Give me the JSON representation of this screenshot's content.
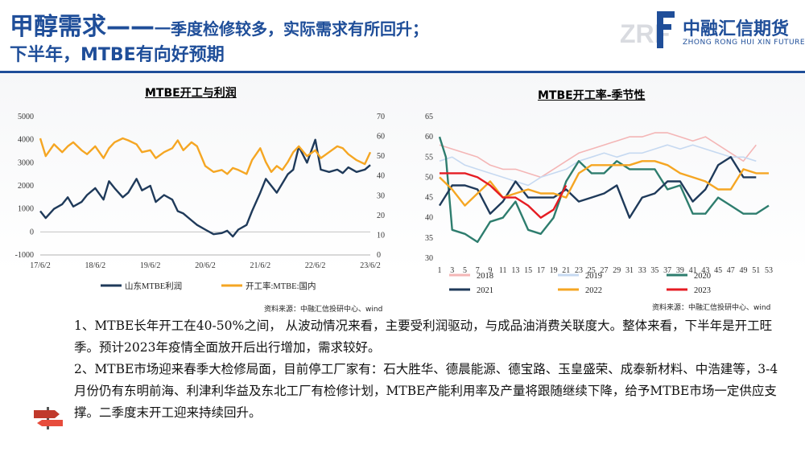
{
  "header": {
    "title_main": "甲醇需求——",
    "title_sub": "一季度检修较多，实际需求有所回升；",
    "title_line2": "下半年，MTBE有向好预期"
  },
  "logo": {
    "cn": "中融汇信期货",
    "en": "ZHONG RONG HUI XIN FUTURES",
    "ghost": "ZRF"
  },
  "colors": {
    "brand": "#1f4e99",
    "series_profit": "#1f3a5a",
    "series_rate": "#f5a623"
  },
  "left_chart_source": "资料来源：中融汇信投研中心、wind",
  "right_chart_source": "资料来源：中融汇信投研中心、wind",
  "paragraphs": {
    "p1": "1、MTBE长年开工在40-50%之间， 从波动情况来看，主要受利润驱动，与成品油消费关联度大。整体来看，下半年是开工旺季。预计2023年疫情全面放开后出行增加，需求较好。",
    "p2": "2、MTBE市场迎来春季大检修局面，目前停工厂家有：石大胜华、德晨能源、德宝路、玉皇盛荣、成泰新材料、中浩建等，3-4月份仍有东明前海、利津利华益及东北工厂有检修计划，MTBE产能利用率及产量将跟随继续下降，给予MTBE市场一定供应支撑。二季度末开工迎来持续回升。"
  },
  "chart_data": [
    {
      "type": "line",
      "title": "MTBE开工与利润",
      "x_tick_labels": [
        "17/6/2",
        "18/6/2",
        "19/6/2",
        "20/6/2",
        "21/6/2",
        "22/6/2",
        "23/6/2"
      ],
      "y_left": {
        "ticks": [
          "-1000",
          "0",
          "1000",
          "2000",
          "3000",
          "4000",
          "5000"
        ],
        "lim": [
          -1000,
          5000
        ]
      },
      "y_right": {
        "ticks": [
          "0",
          "10",
          "20",
          "30",
          "40",
          "50",
          "60",
          "70"
        ],
        "lim": [
          0,
          70
        ]
      },
      "series": [
        {
          "name": "山东MTBE利润",
          "axis": "left",
          "color": "#1f3a5a",
          "x": [
            0,
            0.1,
            0.25,
            0.4,
            0.5,
            0.6,
            0.75,
            0.85,
            1.0,
            1.15,
            1.25,
            1.35,
            1.5,
            1.6,
            1.75,
            1.85,
            2.0,
            2.1,
            2.25,
            2.4,
            2.5,
            2.6,
            2.75,
            2.85,
            3.0,
            3.15,
            3.3,
            3.4,
            3.5,
            3.6,
            3.75,
            3.85,
            4.0,
            4.1,
            4.2,
            4.3,
            4.4,
            4.5,
            4.6,
            4.7,
            4.85,
            5.0,
            5.1,
            5.25,
            5.4,
            5.5,
            5.6,
            5.75,
            5.9,
            6.0
          ],
          "y": [
            900,
            600,
            1000,
            1200,
            1500,
            1100,
            1300,
            1600,
            1900,
            1400,
            2200,
            1900,
            1500,
            1700,
            2300,
            1800,
            2000,
            1300,
            1600,
            1400,
            900,
            800,
            500,
            300,
            100,
            -100,
            -50,
            50,
            -200,
            100,
            300,
            900,
            1700,
            2300,
            2000,
            1700,
            2100,
            2500,
            2700,
            3700,
            3000,
            4000,
            2700,
            2600,
            2700,
            2550,
            2800,
            2600,
            2700,
            2900
          ]
        },
        {
          "name": "开工率:MTBE:国内",
          "axis": "right",
          "color": "#f5a623",
          "x": [
            0,
            0.1,
            0.25,
            0.4,
            0.5,
            0.6,
            0.75,
            0.85,
            1.0,
            1.15,
            1.25,
            1.35,
            1.5,
            1.6,
            1.75,
            1.85,
            2.0,
            2.1,
            2.25,
            2.4,
            2.5,
            2.6,
            2.75,
            2.85,
            3.0,
            3.15,
            3.3,
            3.4,
            3.5,
            3.6,
            3.75,
            3.85,
            4.0,
            4.1,
            4.2,
            4.3,
            4.4,
            4.5,
            4.6,
            4.7,
            4.85,
            5.0,
            5.1,
            5.25,
            5.4,
            5.5,
            5.6,
            5.75,
            5.9,
            6.0
          ],
          "y": [
            59,
            50,
            56,
            52,
            55,
            57,
            53,
            51,
            55,
            49,
            54,
            57,
            59,
            58,
            56,
            52,
            53,
            49,
            52,
            54,
            58,
            53,
            57,
            55,
            45,
            42,
            43,
            41,
            44,
            43,
            41,
            48,
            54,
            47,
            42,
            45,
            43,
            47,
            52,
            55,
            50,
            53,
            49,
            52,
            55,
            54,
            51,
            48,
            46,
            52
          ]
        }
      ]
    },
    {
      "type": "line",
      "title": "MTBE开工率-季节性",
      "x_tick_labels": [
        "1",
        "3",
        "5",
        "7",
        "9",
        "11",
        "13",
        "15",
        "17",
        "19",
        "21",
        "23",
        "25",
        "27",
        "29",
        "31",
        "33",
        "35",
        "37",
        "39",
        "41",
        "43",
        "45",
        "47",
        "49",
        "51",
        "53"
      ],
      "y_ticks": [
        "30",
        "35",
        "40",
        "45",
        "50",
        "55",
        "60",
        "65"
      ],
      "ylim": [
        30,
        65
      ],
      "series": [
        {
          "name": "2018",
          "color": "#f4b6b6",
          "x": [
            1,
            3,
            5,
            7,
            9,
            11,
            13,
            15,
            17,
            19,
            21,
            23,
            25,
            27,
            29,
            31,
            33,
            35,
            37,
            39,
            41,
            43,
            45,
            47,
            49,
            51
          ],
          "y": [
            58,
            57,
            56,
            55,
            53,
            52,
            52,
            51,
            50,
            52,
            54,
            56,
            57,
            58,
            59,
            60,
            60,
            61,
            61,
            60,
            59,
            60,
            58,
            56,
            54,
            58
          ]
        },
        {
          "name": "2019",
          "color": "#c6d9f1",
          "x": [
            1,
            3,
            5,
            7,
            9,
            11,
            13,
            15,
            17,
            19,
            21,
            23,
            25,
            27,
            29,
            31,
            33,
            35,
            37,
            39,
            41,
            43,
            45,
            47,
            49,
            51
          ],
          "y": [
            54,
            55,
            53,
            52,
            51,
            50,
            49,
            48,
            50,
            51,
            52,
            54,
            55,
            56,
            55,
            56,
            56,
            57,
            58,
            57,
            58,
            57,
            56,
            55,
            55,
            54
          ]
        },
        {
          "name": "2020",
          "color": "#2e7d6e",
          "x": [
            1,
            2,
            3,
            5,
            7,
            9,
            11,
            13,
            15,
            17,
            19,
            21,
            23,
            25,
            27,
            29,
            31,
            33,
            35,
            37,
            39,
            41,
            43,
            45,
            47,
            49,
            51,
            53
          ],
          "y": [
            60,
            55,
            37,
            36,
            34,
            39,
            40,
            44,
            37,
            36,
            40,
            49,
            54,
            51,
            51,
            54,
            52,
            52,
            52,
            47,
            48,
            41,
            41,
            45,
            43,
            41,
            41,
            43
          ]
        },
        {
          "name": "2021",
          "color": "#1f3a5a",
          "x": [
            1,
            3,
            5,
            7,
            9,
            11,
            13,
            15,
            17,
            19,
            21,
            23,
            25,
            27,
            29,
            31,
            33,
            35,
            37,
            39,
            41,
            43,
            45,
            47,
            49,
            51
          ],
          "y": [
            43,
            48,
            48,
            47,
            41,
            44,
            49,
            45,
            45,
            45,
            47,
            44,
            45,
            46,
            48,
            40,
            45,
            46,
            49,
            49,
            44,
            47,
            53,
            55,
            50,
            50
          ]
        },
        {
          "name": "2022",
          "color": "#f5a623",
          "x": [
            1,
            3,
            5,
            7,
            9,
            11,
            13,
            15,
            17,
            19,
            21,
            23,
            25,
            27,
            29,
            31,
            33,
            35,
            37,
            39,
            41,
            43,
            45,
            47,
            49,
            51,
            53
          ],
          "y": [
            50,
            47,
            43,
            46,
            49,
            45,
            46,
            47,
            46,
            46,
            45,
            51,
            53,
            53,
            53,
            53,
            54,
            54,
            53,
            51,
            50,
            49,
            47,
            47,
            52,
            51,
            51
          ]
        },
        {
          "name": "2023",
          "color": "#e51c23",
          "x": [
            1,
            3,
            5,
            7,
            9,
            11,
            13,
            15,
            17,
            19,
            21
          ],
          "y": [
            51,
            51,
            51,
            50,
            48,
            45,
            45,
            43,
            40,
            42,
            48
          ]
        }
      ]
    }
  ]
}
